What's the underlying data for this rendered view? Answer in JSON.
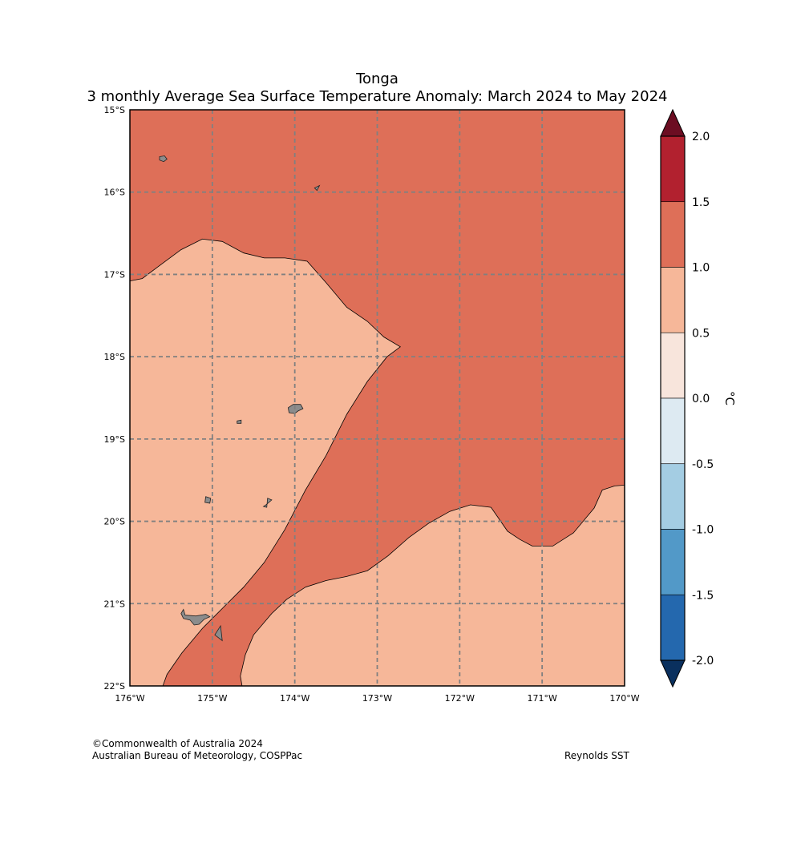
{
  "title": {
    "line1": "Tonga",
    "line2": "3 monthly Average Sea Surface Temperature Anomaly: March 2024 to May 2024"
  },
  "map": {
    "lon_range": [
      -176,
      -170
    ],
    "lat_range": [
      -22,
      -15
    ],
    "lon_ticks": [
      {
        "value": -176,
        "label": "176°W"
      },
      {
        "value": -175,
        "label": "175°W"
      },
      {
        "value": -174,
        "label": "174°W"
      },
      {
        "value": -173,
        "label": "173°W"
      },
      {
        "value": -172,
        "label": "172°W"
      },
      {
        "value": -171,
        "label": "171°W"
      },
      {
        "value": -170,
        "label": "170°W"
      }
    ],
    "lat_ticks": [
      {
        "value": -15,
        "label": "15°S"
      },
      {
        "value": -16,
        "label": "16°S"
      },
      {
        "value": -17,
        "label": "17°S"
      },
      {
        "value": -18,
        "label": "18°S"
      },
      {
        "value": -19,
        "label": "19°S"
      },
      {
        "value": -20,
        "label": "20°S"
      },
      {
        "value": -21,
        "label": "21°S"
      },
      {
        "value": -22,
        "label": "22°S"
      }
    ],
    "regions": [
      {
        "class": "1.0 to 1.5",
        "color": "#de6f58",
        "polygon": [
          [
            -176,
            -15
          ],
          [
            -170,
            -15
          ],
          [
            -170,
            -22
          ],
          [
            -176,
            -22
          ]
        ]
      },
      {
        "class": "0.5 to 1.0",
        "color": "#f6b799",
        "polygon": [
          [
            -176,
            -17.08
          ],
          [
            -175.85,
            -17.05
          ],
          [
            -175.65,
            -16.9
          ],
          [
            -175.38,
            -16.7
          ],
          [
            -175.12,
            -16.57
          ],
          [
            -174.88,
            -16.6
          ],
          [
            -174.62,
            -16.74
          ],
          [
            -174.37,
            -16.8
          ],
          [
            -174.12,
            -16.8
          ],
          [
            -173.85,
            -16.84
          ],
          [
            -173.62,
            -17.1
          ],
          [
            -173.37,
            -17.4
          ],
          [
            -173.12,
            -17.57
          ],
          [
            -172.92,
            -17.76
          ],
          [
            -172.72,
            -17.88
          ],
          [
            -172.88,
            -18.0
          ],
          [
            -173.12,
            -18.3
          ],
          [
            -173.37,
            -18.7
          ],
          [
            -173.62,
            -19.2
          ],
          [
            -173.87,
            -19.62
          ],
          [
            -174.12,
            -20.1
          ],
          [
            -174.37,
            -20.5
          ],
          [
            -174.62,
            -20.8
          ],
          [
            -174.87,
            -21.05
          ],
          [
            -175.12,
            -21.3
          ],
          [
            -175.37,
            -21.6
          ],
          [
            -175.55,
            -21.86
          ],
          [
            -175.6,
            -22
          ],
          [
            -176,
            -22
          ]
        ]
      },
      {
        "class": "0.5 to 1.0",
        "color": "#f6b799",
        "polygon": [
          [
            -174.64,
            -22
          ],
          [
            -174.66,
            -21.88
          ],
          [
            -174.6,
            -21.62
          ],
          [
            -174.5,
            -21.38
          ],
          [
            -174.28,
            -21.12
          ],
          [
            -174.1,
            -20.95
          ],
          [
            -173.87,
            -20.8
          ],
          [
            -173.62,
            -20.72
          ],
          [
            -173.37,
            -20.67
          ],
          [
            -173.12,
            -20.6
          ],
          [
            -172.87,
            -20.42
          ],
          [
            -172.62,
            -20.2
          ],
          [
            -172.37,
            -20.02
          ],
          [
            -172.12,
            -19.88
          ],
          [
            -171.87,
            -19.8
          ],
          [
            -171.62,
            -19.83
          ],
          [
            -171.42,
            -20.12
          ],
          [
            -171.27,
            -20.22
          ],
          [
            -171.12,
            -20.3
          ],
          [
            -170.87,
            -20.3
          ],
          [
            -170.62,
            -20.14
          ],
          [
            -170.37,
            -19.84
          ],
          [
            -170.27,
            -19.62
          ],
          [
            -170.12,
            -19.57
          ],
          [
            -170,
            -19.56
          ],
          [
            -170,
            -22
          ]
        ]
      }
    ],
    "land": [
      {
        "name": "island-a",
        "polygon": [
          [
            -175.64,
            -15.57
          ],
          [
            -175.58,
            -15.56
          ],
          [
            -175.55,
            -15.6
          ],
          [
            -175.59,
            -15.63
          ],
          [
            -175.64,
            -15.61
          ]
        ]
      },
      {
        "name": "island-b",
        "polygon": [
          [
            -173.76,
            -15.95
          ],
          [
            -173.7,
            -15.92
          ],
          [
            -173.73,
            -15.98
          ]
        ]
      },
      {
        "name": "island-c",
        "polygon": [
          [
            -174.08,
            -18.62
          ],
          [
            -174.02,
            -18.58
          ],
          [
            -173.93,
            -18.58
          ],
          [
            -173.9,
            -18.63
          ],
          [
            -173.96,
            -18.66
          ],
          [
            -174.0,
            -18.69
          ],
          [
            -174.07,
            -18.68
          ]
        ]
      },
      {
        "name": "island-d",
        "polygon": [
          [
            -174.7,
            -18.78
          ],
          [
            -174.65,
            -18.77
          ],
          [
            -174.65,
            -18.81
          ],
          [
            -174.7,
            -18.81
          ]
        ]
      },
      {
        "name": "island-e",
        "polygon": [
          [
            -175.08,
            -19.7
          ],
          [
            -175.02,
            -19.72
          ],
          [
            -175.03,
            -19.78
          ],
          [
            -175.09,
            -19.77
          ]
        ]
      },
      {
        "name": "island-f",
        "polygon": [
          [
            -174.33,
            -19.72
          ],
          [
            -174.28,
            -19.74
          ],
          [
            -174.35,
            -19.8
          ],
          [
            -174.38,
            -19.82
          ],
          [
            -174.34,
            -19.83
          ]
        ]
      },
      {
        "name": "island-g",
        "polygon": [
          [
            -175.35,
            -21.07
          ],
          [
            -175.33,
            -21.14
          ],
          [
            -175.2,
            -21.15
          ],
          [
            -175.08,
            -21.13
          ],
          [
            -175.03,
            -21.16
          ],
          [
            -175.1,
            -21.19
          ],
          [
            -175.16,
            -21.25
          ],
          [
            -175.22,
            -21.26
          ],
          [
            -175.27,
            -21.2
          ],
          [
            -175.35,
            -21.18
          ],
          [
            -175.38,
            -21.12
          ]
        ]
      },
      {
        "name": "island-h",
        "polygon": [
          [
            -174.9,
            -21.27
          ],
          [
            -174.88,
            -21.45
          ],
          [
            -174.97,
            -21.38
          ]
        ]
      }
    ]
  },
  "colorbar": {
    "unit": "°C",
    "tick_labels": [
      "2.0",
      "1.5",
      "1.0",
      "0.5",
      "0.0",
      "-0.5",
      "-1.0",
      "-1.5",
      "-2.0"
    ],
    "levels": [
      {
        "from": 1.5,
        "to": 2.0,
        "color": "#b2212f"
      },
      {
        "from": 1.0,
        "to": 1.5,
        "color": "#de6f58"
      },
      {
        "from": 0.5,
        "to": 1.0,
        "color": "#f6b799"
      },
      {
        "from": 0.0,
        "to": 0.5,
        "color": "#f8e5dc"
      },
      {
        "from": -0.5,
        "to": 0.0,
        "color": "#ddeaf2"
      },
      {
        "from": -1.0,
        "to": -0.5,
        "color": "#a4cde3"
      },
      {
        "from": -1.5,
        "to": -1.0,
        "color": "#5299c8"
      },
      {
        "from": -2.0,
        "to": -1.5,
        "color": "#2468ae"
      }
    ],
    "over_color": "#6c0d22",
    "under_color": "#0a305e"
  },
  "footer": {
    "copyright": "©Commonwealth of Australia 2024",
    "agency": "Australian Bureau of Meteorology, COSPPac",
    "source": "Reynolds SST"
  }
}
